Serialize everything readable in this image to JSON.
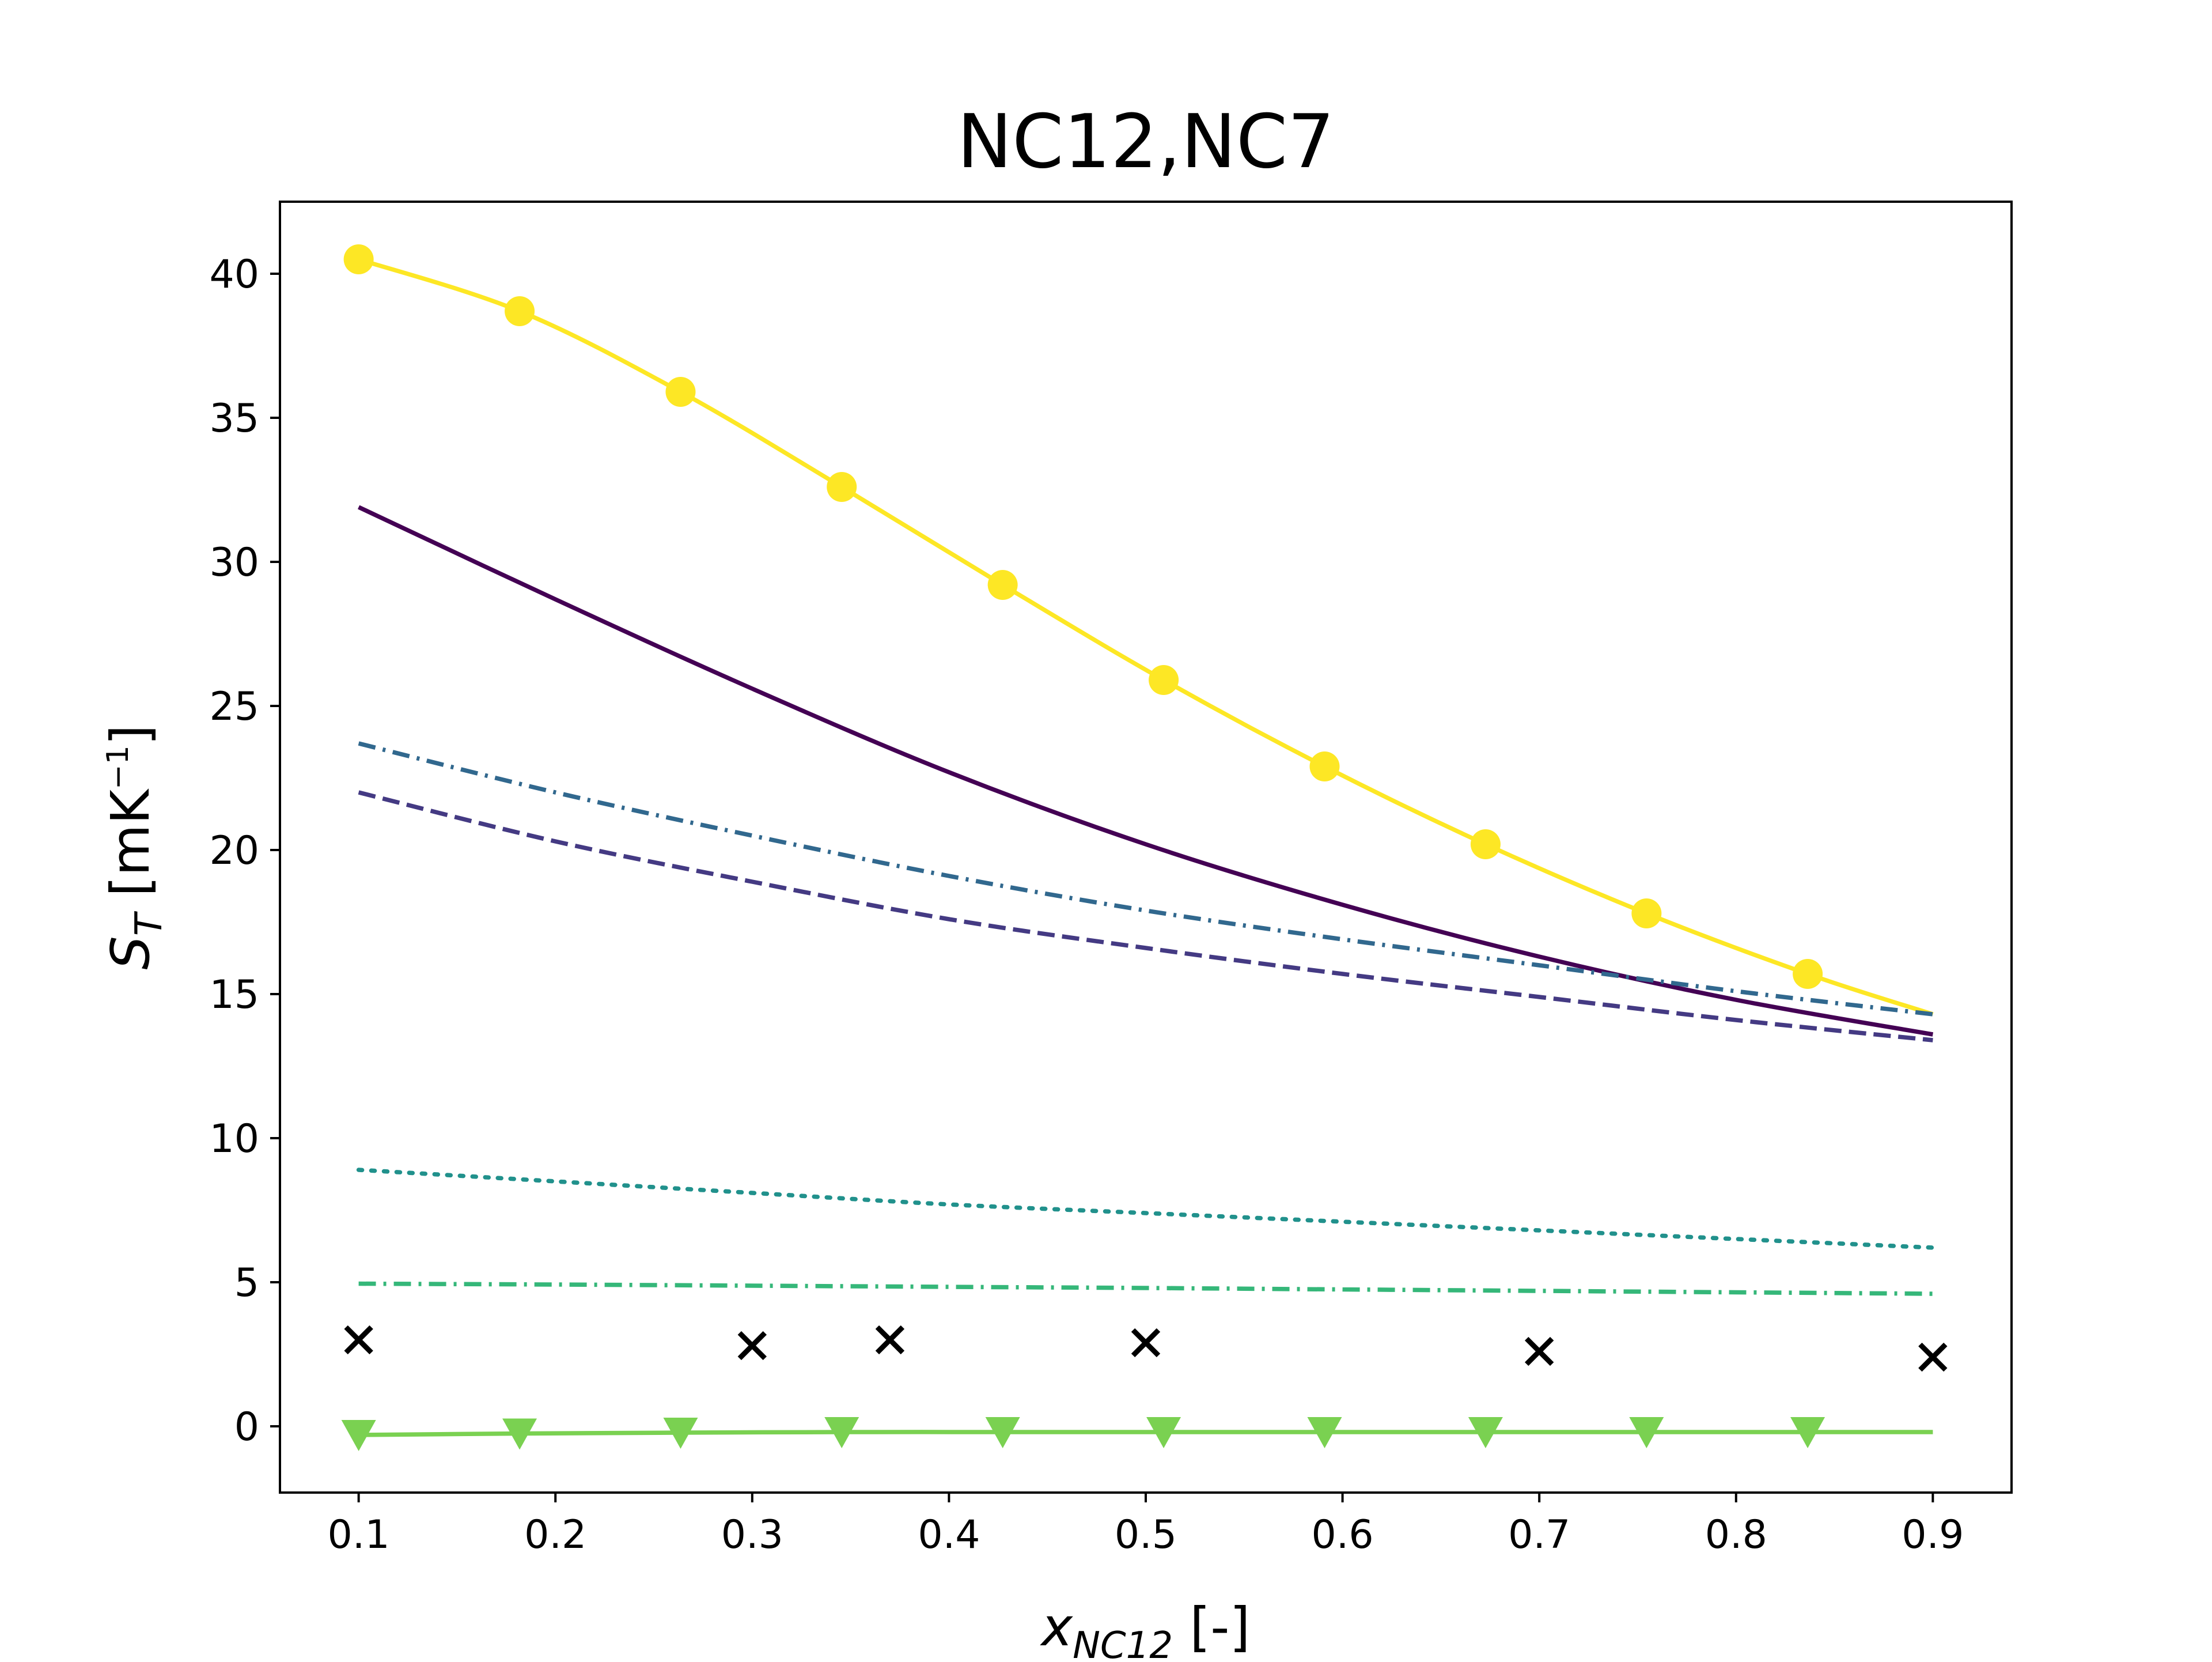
{
  "chart_data": {
    "type": "line",
    "title": "NC12,NC7",
    "xlabel": {
      "base": "x",
      "sub": "NC12",
      "unit": " [-]"
    },
    "ylabel": {
      "base": "S",
      "sub": "T",
      "unit_open": " [mK",
      "unit_sup": "−1",
      "unit_close": "]"
    },
    "xlim": [
      0.06,
      0.94
    ],
    "ylim": [
      -2.3,
      42.5
    ],
    "xticks": [
      0.1,
      0.2,
      0.3,
      0.4,
      0.5,
      0.6,
      0.7,
      0.8,
      0.9
    ],
    "xtick_labels": [
      "0.1",
      "0.2",
      "0.3",
      "0.4",
      "0.5",
      "0.6",
      "0.7",
      "0.8",
      "0.9"
    ],
    "yticks": [
      0,
      5,
      10,
      15,
      20,
      25,
      30,
      35,
      40
    ],
    "ytick_labels": [
      "0",
      "5",
      "10",
      "15",
      "20",
      "25",
      "30",
      "35",
      "40"
    ],
    "grid": false,
    "legend": null,
    "series": [
      {
        "color": "#fde725",
        "style": "solid",
        "marker": "circle",
        "x": [
          0.1,
          0.1818,
          0.2636,
          0.3455,
          0.4273,
          0.5091,
          0.5909,
          0.6727,
          0.7545,
          0.8364,
          0.9
        ],
        "y": [
          40.5,
          38.7,
          35.9,
          32.6,
          29.2,
          25.9,
          22.9,
          20.2,
          17.8,
          15.7,
          14.3
        ],
        "marker_x": [
          0.1,
          0.1818,
          0.2636,
          0.3455,
          0.4273,
          0.5091,
          0.5909,
          0.6727,
          0.7545,
          0.8364
        ],
        "marker_y": [
          40.5,
          38.7,
          35.9,
          32.6,
          29.2,
          25.9,
          22.9,
          20.2,
          17.8,
          15.7
        ]
      },
      {
        "color": "#440154",
        "style": "solid",
        "marker": "none",
        "x": [
          0.1,
          0.2,
          0.3,
          0.4,
          0.5,
          0.6,
          0.7,
          0.8,
          0.9
        ],
        "y": [
          31.9,
          28.7,
          25.6,
          22.7,
          20.2,
          18.1,
          16.3,
          14.8,
          13.6
        ]
      },
      {
        "color": "#31688e",
        "style": "dashdot",
        "marker": "none",
        "x": [
          0.1,
          0.2,
          0.3,
          0.4,
          0.5,
          0.6,
          0.7,
          0.8,
          0.9
        ],
        "y": [
          23.7,
          22.0,
          20.5,
          19.1,
          17.9,
          16.9,
          16.0,
          15.1,
          14.3
        ]
      },
      {
        "color": "#443a83",
        "style": "dashed",
        "marker": "none",
        "x": [
          0.1,
          0.2,
          0.3,
          0.4,
          0.5,
          0.6,
          0.7,
          0.8,
          0.9
        ],
        "y": [
          22.0,
          20.3,
          18.9,
          17.6,
          16.6,
          15.7,
          14.9,
          14.1,
          13.4
        ]
      },
      {
        "color": "#21918c",
        "style": "dotted",
        "marker": "none",
        "x": [
          0.1,
          0.2,
          0.3,
          0.4,
          0.5,
          0.6,
          0.7,
          0.8,
          0.9
        ],
        "y": [
          8.9,
          8.5,
          8.1,
          7.7,
          7.4,
          7.1,
          6.8,
          6.5,
          6.2
        ]
      },
      {
        "color": "#35b779",
        "style": "dashdot",
        "marker": "none",
        "x": [
          0.1,
          0.2,
          0.3,
          0.4,
          0.5,
          0.6,
          0.7,
          0.8,
          0.9
        ],
        "y": [
          4.95,
          4.92,
          4.88,
          4.84,
          4.8,
          4.75,
          4.7,
          4.65,
          4.6
        ]
      },
      {
        "color": "#000000",
        "style": "none",
        "marker": "x",
        "x": [
          0.1,
          0.3,
          0.37,
          0.5,
          0.7,
          0.9
        ],
        "y": [
          3.0,
          2.8,
          3.0,
          2.9,
          2.6,
          2.4
        ]
      },
      {
        "color": "#7ad151",
        "style": "solid",
        "marker": "triangle_down",
        "x": [
          0.1,
          0.1818,
          0.2636,
          0.3455,
          0.4273,
          0.5091,
          0.5909,
          0.6727,
          0.7545,
          0.8364,
          0.9
        ],
        "y": [
          -0.3,
          -0.25,
          -0.22,
          -0.2,
          -0.2,
          -0.2,
          -0.2,
          -0.2,
          -0.2,
          -0.2,
          -0.2
        ],
        "marker_x": [
          0.1,
          0.1818,
          0.2636,
          0.3455,
          0.4273,
          0.5091,
          0.5909,
          0.6727,
          0.7545,
          0.8364
        ],
        "marker_y": [
          -0.3,
          -0.25,
          -0.22,
          -0.2,
          -0.2,
          -0.2,
          -0.2,
          -0.2,
          -0.2,
          -0.2
        ]
      }
    ]
  }
}
